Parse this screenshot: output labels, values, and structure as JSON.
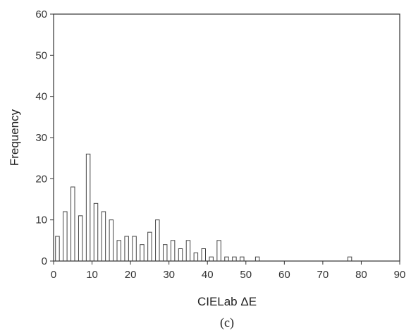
{
  "chart_data": {
    "type": "bar",
    "title": "",
    "xlabel": "CIELab ΔE",
    "ylabel": "Frequency",
    "caption": "(c)",
    "xlim": [
      0,
      90
    ],
    "ylim": [
      0,
      60
    ],
    "xticks": [
      0,
      10,
      20,
      30,
      40,
      50,
      60,
      70,
      80,
      90
    ],
    "yticks": [
      0,
      10,
      20,
      30,
      40,
      50,
      60
    ],
    "grid": false,
    "bin_width": 2,
    "x": [
      1,
      3,
      5,
      7,
      9,
      11,
      13,
      15,
      17,
      19,
      21,
      23,
      25,
      27,
      29,
      31,
      33,
      35,
      37,
      39,
      41,
      43,
      45,
      47,
      49,
      51,
      53,
      55,
      57,
      59,
      61,
      63,
      65,
      67,
      69,
      71,
      73,
      75,
      77,
      79,
      81,
      83,
      85,
      87,
      89
    ],
    "values": [
      6,
      12,
      18,
      11,
      26,
      14,
      12,
      10,
      5,
      6,
      6,
      4,
      7,
      10,
      4,
      5,
      3,
      5,
      2,
      3,
      1,
      5,
      1,
      1,
      1,
      0,
      1,
      0,
      0,
      0,
      0,
      0,
      0,
      0,
      0,
      0,
      0,
      0,
      1,
      0,
      0,
      0,
      0,
      0,
      0
    ]
  }
}
